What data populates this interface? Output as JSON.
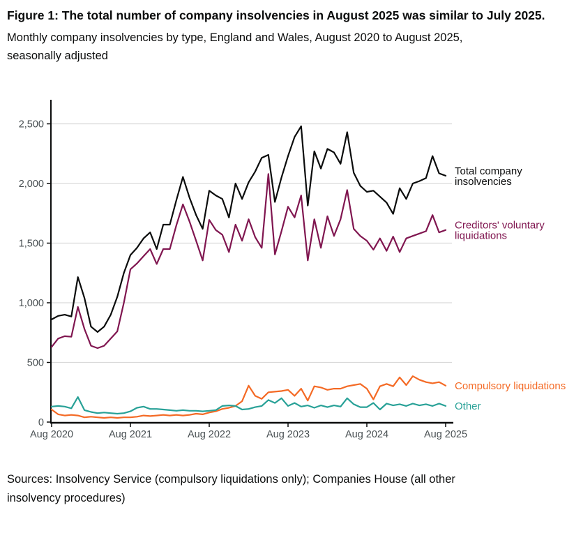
{
  "figure": {
    "title": "Figure 1: The total number of company insolvencies in August 2025 was similar to July 2025.",
    "subtitle": "Monthly company insolvencies by type, England and Wales, August 2020 to August 2025, seasonally adjusted",
    "sources": "Sources: Insolvency Service (compulsory liquidations only); Companies House (all other insolvency procedures)"
  },
  "chart_data": {
    "type": "line",
    "title": "Monthly company insolvencies by type, England and Wales, August 2020 to August 2025, seasonally adjusted",
    "x_interval": "monthly",
    "x_range": [
      "Aug 2020",
      "Aug 2025"
    ],
    "x_tick_labels": [
      "Aug 2020",
      "Aug 2021",
      "Aug 2022",
      "Aug 2023",
      "Aug 2024",
      "Aug 2025"
    ],
    "y_tick_values": [
      0,
      500,
      1000,
      1500,
      2000,
      2500
    ],
    "y_tick_labels": [
      "0",
      "500",
      "1,000",
      "1,500",
      "2,000",
      "2,500"
    ],
    "ylim": [
      0,
      2700
    ],
    "grid": "horizontal",
    "legend_position": "labels-at-line-ends",
    "axis_color": "#0b0c0c",
    "gridline_color": "#d9d9d9",
    "series": [
      {
        "name": "Total company insolvencies",
        "label_lines": [
          "Total company",
          "insolvencies"
        ],
        "color": "#0b0c0c",
        "values": [
          860,
          890,
          900,
          885,
          1215,
          1040,
          800,
          755,
          800,
          900,
          1050,
          1250,
          1400,
          1460,
          1540,
          1590,
          1450,
          1655,
          1655,
          1860,
          2055,
          1880,
          1735,
          1620,
          1940,
          1900,
          1870,
          1715,
          2000,
          1870,
          2010,
          2100,
          2215,
          2240,
          1845,
          2050,
          2230,
          2390,
          2480,
          1815,
          2270,
          2125,
          2290,
          2260,
          2165,
          2430,
          2090,
          1980,
          1930,
          1940,
          1890,
          1840,
          1745,
          1960,
          1870,
          2000,
          2020,
          2045,
          2230,
          2085,
          2065
        ]
      },
      {
        "name": "Creditors' voluntary liquidations",
        "label_lines": [
          "Creditors' voluntary",
          "liquidations"
        ],
        "color": "#801650",
        "values": [
          630,
          700,
          720,
          715,
          965,
          780,
          640,
          620,
          640,
          700,
          760,
          1000,
          1280,
          1330,
          1390,
          1450,
          1325,
          1450,
          1450,
          1650,
          1825,
          1680,
          1520,
          1355,
          1695,
          1610,
          1570,
          1425,
          1655,
          1520,
          1700,
          1550,
          1460,
          2080,
          1405,
          1600,
          1805,
          1715,
          1900,
          1355,
          1700,
          1460,
          1725,
          1560,
          1700,
          1945,
          1620,
          1560,
          1520,
          1445,
          1540,
          1435,
          1555,
          1425,
          1540,
          1560,
          1580,
          1600,
          1735,
          1590,
          1610
        ]
      },
      {
        "name": "Compulsory liquidations",
        "label_lines": [
          "Compulsory liquidations"
        ],
        "color": "#f46a25",
        "values": [
          105,
          65,
          55,
          60,
          55,
          40,
          45,
          40,
          35,
          40,
          35,
          40,
          40,
          45,
          55,
          50,
          55,
          60,
          55,
          60,
          55,
          60,
          70,
          65,
          80,
          90,
          110,
          120,
          135,
          175,
          305,
          220,
          195,
          250,
          255,
          260,
          270,
          220,
          280,
          180,
          300,
          290,
          270,
          280,
          280,
          300,
          310,
          320,
          280,
          190,
          300,
          320,
          300,
          375,
          310,
          385,
          355,
          335,
          325,
          335,
          305
        ]
      },
      {
        "name": "Other",
        "label_lines": [
          "Other"
        ],
        "color": "#28a197",
        "values": [
          130,
          135,
          130,
          115,
          210,
          100,
          85,
          75,
          80,
          75,
          70,
          75,
          90,
          120,
          130,
          110,
          110,
          105,
          100,
          95,
          100,
          95,
          95,
          90,
          95,
          100,
          135,
          140,
          135,
          105,
          110,
          125,
          135,
          185,
          160,
          200,
          135,
          160,
          130,
          140,
          120,
          140,
          125,
          140,
          130,
          200,
          150,
          125,
          125,
          160,
          105,
          155,
          140,
          150,
          135,
          155,
          140,
          150,
          135,
          155,
          135
        ]
      }
    ]
  }
}
